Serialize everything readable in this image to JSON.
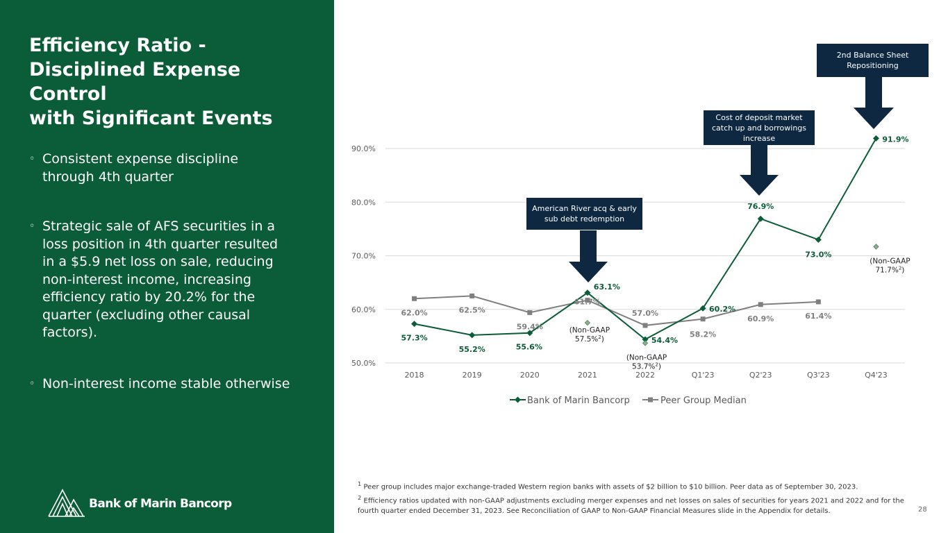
{
  "slide": {
    "title_lines": [
      "Efficiency Ratio -",
      "Disciplined Expense",
      "Control",
      "with Significant Events"
    ],
    "bullets": [
      "Consistent expense discipline through 4th quarter",
      "Strategic sale of AFS securities in a loss position in 4th quarter resulted in a $5.9 net loss on sale, reducing non-interest income, increasing efficiency ratio by 20.2% for the quarter (excluding other causal factors).",
      "Non-interest income stable otherwise"
    ],
    "bullet_symbol": "◦",
    "logo_text": "Bank of Marin Bancorp",
    "page_number": "28"
  },
  "callouts": {
    "american_river": "American River acq & early sub debt redemption",
    "cost_of_deposit": "Cost of deposit market catch up and borrowings increase",
    "second_repositioning": "2nd Balance Sheet Repositioning"
  },
  "footnotes": {
    "fn1_marker": "1",
    "fn1_text": "Peer group includes major exchange-traded Western region banks with assets of $2 billion to $10 billion.  Peer data as of September 30, 2023.",
    "fn2_marker": "2",
    "fn2_text": "Efficiency ratios updated with non-GAAP adjustments excluding merger expenses and net losses on sales of securities for years 2021 and 2022 and for the fourth quarter ended December 31, 2023. See Reconciliation of GAAP to Non-GAAP Financial Measures slide in the Appendix for details."
  },
  "colors": {
    "panel_green": "#0b5c38",
    "bank_series": "#0b5c38",
    "peer_series": "#7f7f7f",
    "callout_navy": "#0e2841",
    "gridline": "#d9d9d9",
    "axis_text": "#595959"
  },
  "chart_data": {
    "type": "line",
    "title": "",
    "categories": [
      "2018",
      "2019",
      "2020",
      "2021",
      "2022",
      "Q1'23",
      "Q2'23",
      "Q3'23",
      "Q4'23"
    ],
    "ylim": [
      50,
      90
    ],
    "y_ticks": [
      50,
      60,
      70,
      80,
      90
    ],
    "y_tick_labels": [
      "50.0%",
      "60.0%",
      "70.0%",
      "80.0%",
      "90.0%"
    ],
    "gridlines": true,
    "legend_position": "bottom",
    "series": [
      {
        "name": "Bank of Marin Bancorp",
        "marker": "diamond",
        "values": [
          57.3,
          55.2,
          55.6,
          63.1,
          54.4,
          60.2,
          76.9,
          73.0,
          91.9
        ],
        "labels": [
          "57.3%",
          "55.2%",
          "55.6%",
          "63.1%",
          "54.4%",
          "60.2%",
          "76.9%",
          "73.0%",
          "91.9%"
        ]
      },
      {
        "name": "Peer Group Median",
        "marker": "square",
        "values": [
          62.0,
          62.5,
          59.4,
          61.7,
          57.0,
          58.2,
          60.9,
          61.4,
          null
        ],
        "labels": [
          "62.0%",
          "62.5%",
          "59.4%",
          "61.7%",
          "57.0%",
          "58.2%",
          "60.9%",
          "61.4%",
          null
        ]
      }
    ],
    "non_gaap_points": [
      {
        "category": "2021",
        "value": 57.5,
        "prefix": "(Non-GAAP",
        "label": "57.5%",
        "sup": "2",
        "suffix": ")"
      },
      {
        "category": "2022",
        "value": 53.7,
        "prefix": "(Non-GAAP",
        "label": "53.7%",
        "sup": "2",
        "suffix": ")"
      },
      {
        "category": "Q4'23",
        "value": 71.7,
        "prefix": "(Non-GAAP",
        "label": "71.7%",
        "sup": "2",
        "suffix": ")"
      }
    ]
  }
}
